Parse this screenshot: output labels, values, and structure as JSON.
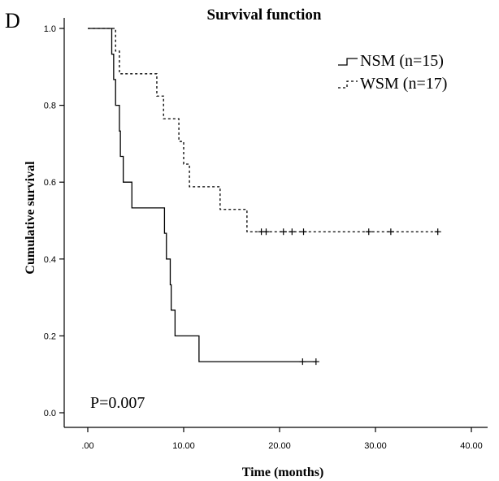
{
  "panel_letter": "D",
  "chart_data": {
    "type": "line",
    "subtype": "kaplan-meier",
    "title": "Survival function",
    "xlabel": "Time (months)",
    "ylabel": "Cumulative survival",
    "xlim": [
      0,
      40
    ],
    "ylim": [
      0,
      1.0
    ],
    "x_ticks": [
      0,
      10,
      20,
      30,
      40
    ],
    "x_tick_labels": [
      ".00",
      "10.00",
      "20.00",
      "30.00",
      "40.00"
    ],
    "y_ticks": [
      0,
      0.2,
      0.4,
      0.6,
      0.8,
      1.0
    ],
    "y_tick_labels": [
      "0.0",
      "0.2",
      "0.4",
      "0.6",
      "0.8",
      "1.0"
    ],
    "grid": false,
    "legend_position": "top-right",
    "annotation": "P=0.007",
    "series": [
      {
        "name": "NSM (n=15)",
        "line_style": "solid",
        "steps": [
          [
            0,
            1.0
          ],
          [
            2.5,
            0.933
          ],
          [
            2.7,
            0.867
          ],
          [
            2.9,
            0.8
          ],
          [
            3.3,
            0.733
          ],
          [
            3.4,
            0.667
          ],
          [
            3.7,
            0.6
          ],
          [
            4.6,
            0.533
          ],
          [
            8.0,
            0.467
          ],
          [
            8.2,
            0.4
          ],
          [
            8.6,
            0.333
          ],
          [
            8.7,
            0.267
          ],
          [
            9.1,
            0.2
          ],
          [
            11.6,
            0.133
          ],
          [
            23.8,
            0.133
          ]
        ],
        "censored": [
          [
            22.4,
            0.133
          ],
          [
            23.8,
            0.133
          ]
        ]
      },
      {
        "name": "WSM (n=17)",
        "line_style": "dashed",
        "steps": [
          [
            0,
            1.0
          ],
          [
            2.9,
            0.941
          ],
          [
            3.3,
            0.882
          ],
          [
            7.2,
            0.824
          ],
          [
            7.9,
            0.765
          ],
          [
            9.5,
            0.706
          ],
          [
            10.0,
            0.647
          ],
          [
            10.6,
            0.588
          ],
          [
            13.8,
            0.529
          ],
          [
            16.6,
            0.471
          ],
          [
            36.5,
            0.471
          ]
        ],
        "censored": [
          [
            18.1,
            0.471
          ],
          [
            18.6,
            0.471
          ],
          [
            20.4,
            0.471
          ],
          [
            21.3,
            0.471
          ],
          [
            22.5,
            0.471
          ],
          [
            29.3,
            0.471
          ],
          [
            31.6,
            0.471
          ],
          [
            36.5,
            0.471
          ]
        ]
      }
    ]
  }
}
